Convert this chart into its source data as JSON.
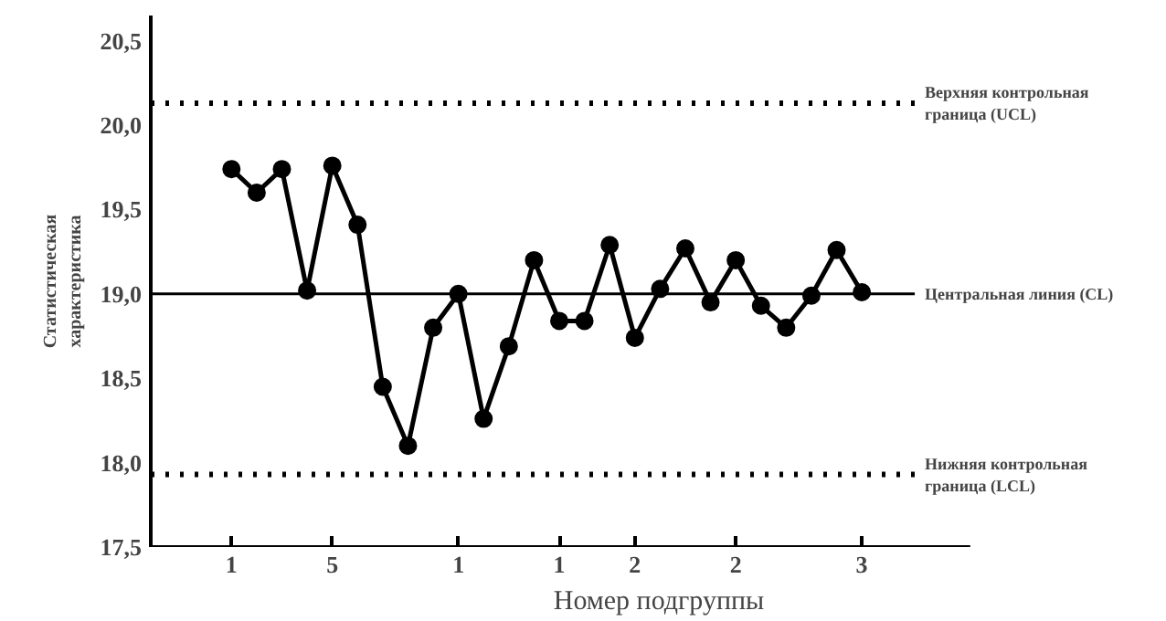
{
  "chart_data": {
    "type": "line",
    "xlabel": "Номер подгруппы",
    "ylabel": "Статистическая\nхарактеристика",
    "categories": [
      "1",
      null,
      null,
      null,
      "5",
      null,
      null,
      null,
      null,
      "1",
      null,
      null,
      null,
      "1",
      null,
      null,
      "2",
      null,
      null,
      null,
      "2",
      null,
      null,
      null,
      null,
      "3"
    ],
    "series": [
      {
        "color": "#000000",
        "values": [
          19.74,
          19.6,
          19.74,
          19.02,
          19.76,
          19.41,
          18.45,
          18.1,
          18.8,
          19.0,
          18.26,
          18.69,
          19.2,
          18.84,
          18.84,
          19.29,
          18.74,
          19.03,
          19.27,
          18.95,
          19.2,
          18.93,
          18.8,
          18.99,
          19.26,
          19.01
        ]
      }
    ],
    "ylim": [
      17.5,
      20.65
    ],
    "yticks": [
      {
        "value": 17.5,
        "label": "17,5"
      },
      {
        "value": 18.0,
        "label": "18,0"
      },
      {
        "value": 18.5,
        "label": "18,5"
      },
      {
        "value": 19.0,
        "label": "19,0"
      },
      {
        "value": 19.5,
        "label": "19,5"
      },
      {
        "value": 20.0,
        "label": "20,0"
      },
      {
        "value": 20.5,
        "label": "20,5"
      }
    ],
    "ref_lines": [
      {
        "axis": "y",
        "value": 20.13,
        "label": "Верхняя контрольная\nграница (UCL)",
        "line_style": "dotted",
        "color": "#000000"
      },
      {
        "axis": "y",
        "value": 19.0,
        "label": "Центральная линия (CL)",
        "line_style": "solid",
        "color": "#000000"
      },
      {
        "axis": "y",
        "value": 17.93,
        "label": "Нижняя контрольная\nграница (LCL)",
        "line_style": "dotted",
        "color": "#000000"
      }
    ],
    "grid": false,
    "marker": "circle",
    "line_style": "solid"
  }
}
